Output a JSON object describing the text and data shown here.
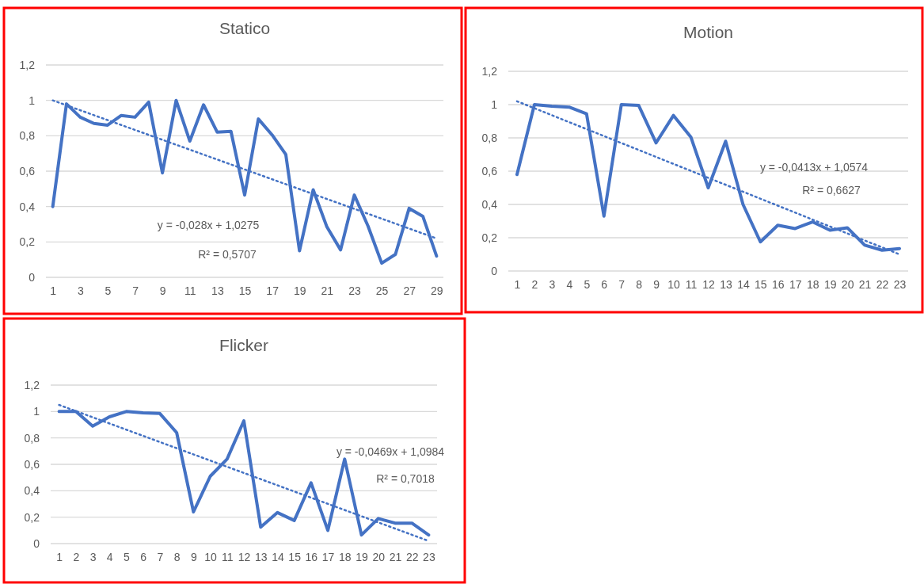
{
  "chart_data": [
    {
      "type": "line",
      "title": "Statico",
      "x": [
        1,
        2,
        3,
        4,
        5,
        6,
        7,
        8,
        9,
        10,
        11,
        12,
        13,
        14,
        15,
        16,
        17,
        18,
        19,
        20,
        21,
        22,
        23,
        24,
        25,
        26,
        27,
        28,
        29
      ],
      "xlim": [
        0.5,
        29.5
      ],
      "xticks": [
        1,
        3,
        5,
        7,
        9,
        11,
        13,
        15,
        17,
        19,
        21,
        23,
        25,
        27,
        29
      ],
      "ylim": [
        0,
        1.2
      ],
      "yticks": [
        {
          "value": 0,
          "label": "0"
        },
        {
          "value": 0.2,
          "label": "0,2"
        },
        {
          "value": 0.4,
          "label": "0,4"
        },
        {
          "value": 0.6,
          "label": "0,6"
        },
        {
          "value": 0.8,
          "label": "0,8"
        },
        {
          "value": 1,
          "label": "1"
        },
        {
          "value": 1.2,
          "label": "1,2"
        }
      ],
      "grid": "y",
      "series": [
        {
          "type": "line",
          "color": "#4472c4",
          "line_style": "solid",
          "values": [
            0.4,
            0.98,
            0.905,
            0.87,
            0.86,
            0.915,
            0.905,
            0.99,
            0.59,
            1.0,
            0.77,
            0.975,
            0.82,
            0.825,
            0.465,
            0.895,
            0.805,
            0.695,
            0.15,
            0.495,
            0.285,
            0.155,
            0.465,
            0.29,
            0.08,
            0.13,
            0.39,
            0.345,
            0.12
          ]
        },
        {
          "type": "line",
          "color": "#4472c4",
          "line_style": "dotted",
          "x": [
            1,
            29
          ],
          "values": [
            1.0,
            0.22
          ]
        }
      ],
      "annotations": [
        "y = -0,028x + 1,0275",
        "R² = 0,5707"
      ]
    },
    {
      "type": "line",
      "title": "Motion",
      "x": [
        1,
        2,
        3,
        4,
        5,
        6,
        7,
        8,
        9,
        10,
        11,
        12,
        13,
        14,
        15,
        16,
        17,
        18,
        19,
        20,
        21,
        22,
        23
      ],
      "xlim": [
        0.5,
        23.5
      ],
      "xticks": [
        1,
        2,
        3,
        4,
        5,
        6,
        7,
        8,
        9,
        10,
        11,
        12,
        13,
        14,
        15,
        16,
        17,
        18,
        19,
        20,
        21,
        22,
        23
      ],
      "ylim": [
        0,
        1.2
      ],
      "yticks": [
        {
          "value": 0,
          "label": "0"
        },
        {
          "value": 0.2,
          "label": "0,2"
        },
        {
          "value": 0.4,
          "label": "0,4"
        },
        {
          "value": 0.6,
          "label": "0,6"
        },
        {
          "value": 0.8,
          "label": "0,8"
        },
        {
          "value": 1,
          "label": "1"
        },
        {
          "value": 1.2,
          "label": "1,2"
        }
      ],
      "grid": "y",
      "series": [
        {
          "type": "line",
          "color": "#4472c4",
          "line_style": "solid",
          "values": [
            0.58,
            1.0,
            0.99,
            0.985,
            0.945,
            0.33,
            1.0,
            0.995,
            0.77,
            0.935,
            0.805,
            0.5,
            0.78,
            0.4,
            0.175,
            0.275,
            0.255,
            0.295,
            0.245,
            0.26,
            0.155,
            0.125,
            0.135
          ]
        },
        {
          "type": "line",
          "color": "#4472c4",
          "line_style": "dotted",
          "x": [
            1,
            23
          ],
          "values": [
            1.02,
            0.1
          ]
        }
      ],
      "annotations": [
        "y = -0,0413x + 1,0574",
        "R² = 0,6627"
      ]
    },
    {
      "type": "line",
      "title": "Flicker",
      "x": [
        1,
        2,
        3,
        4,
        5,
        6,
        7,
        8,
        9,
        10,
        11,
        12,
        13,
        14,
        15,
        16,
        17,
        18,
        19,
        20,
        21,
        22,
        23
      ],
      "xlim": [
        0.5,
        23.5
      ],
      "xticks": [
        1,
        2,
        3,
        4,
        5,
        6,
        7,
        8,
        9,
        10,
        11,
        12,
        13,
        14,
        15,
        16,
        17,
        18,
        19,
        20,
        21,
        22,
        23
      ],
      "ylim": [
        0,
        1.2
      ],
      "yticks": [
        {
          "value": 0,
          "label": "0"
        },
        {
          "value": 0.2,
          "label": "0,2"
        },
        {
          "value": 0.4,
          "label": "0,4"
        },
        {
          "value": 0.6,
          "label": "0,6"
        },
        {
          "value": 0.8,
          "label": "0,8"
        },
        {
          "value": 1,
          "label": "1"
        },
        {
          "value": 1.2,
          "label": "1,2"
        }
      ],
      "grid": "y",
      "series": [
        {
          "type": "line",
          "color": "#4472c4",
          "line_style": "solid",
          "values": [
            1.0,
            1.0,
            0.89,
            0.96,
            1.0,
            0.99,
            0.985,
            0.84,
            0.24,
            0.51,
            0.64,
            0.93,
            0.125,
            0.235,
            0.175,
            0.46,
            0.1,
            0.64,
            0.065,
            0.19,
            0.155,
            0.155,
            0.065
          ]
        },
        {
          "type": "line",
          "color": "#4472c4",
          "line_style": "dotted",
          "x": [
            1,
            23
          ],
          "values": [
            1.05,
            0.02
          ]
        }
      ],
      "annotations": [
        "y = -0,0469x + 1,0984",
        "R² = 0,7018"
      ]
    }
  ]
}
